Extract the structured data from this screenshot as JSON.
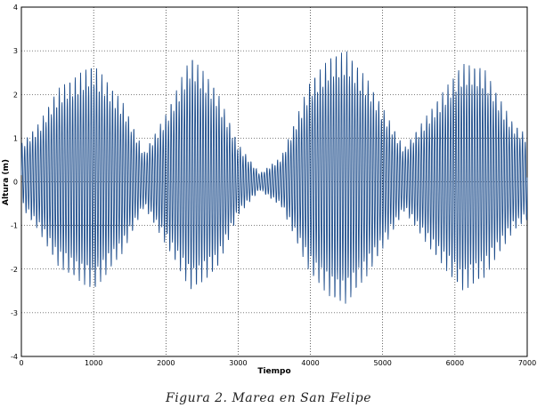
{
  "caption": "Figura 2. Marea en San Felipe",
  "chart_data": {
    "type": "line",
    "title": "",
    "xlabel": "Tiempo",
    "ylabel": "Altura (m)",
    "xlim": [
      0,
      7000
    ],
    "ylim": [
      -4,
      4
    ],
    "xticks": [
      0,
      1000,
      2000,
      3000,
      4000,
      5000,
      6000,
      7000
    ],
    "yticks": [
      -4,
      -3,
      -2,
      -1,
      0,
      1,
      2,
      3,
      4
    ],
    "xtick_labels": [
      "0",
      "1000",
      "2000",
      "3000",
      "4000",
      "5000",
      "6000",
      "7000"
    ],
    "ytick_labels": [
      "-4",
      "-3",
      "-2",
      "-1",
      "0",
      "1",
      "2",
      "3",
      "4"
    ],
    "grid": true,
    "line_color": "#1f4e8c",
    "series": [
      {
        "envelope": {
          "x": [
            0,
            250,
            500,
            1000,
            1400,
            1700,
            2000,
            2350,
            2700,
            3000,
            3300,
            3600,
            4000,
            4300,
            4500,
            4800,
            5300,
            5700,
            6100,
            6400,
            6800,
            7000
          ],
          "upper": [
            0.9,
            1.4,
            2.2,
            2.8,
            1.9,
            0.7,
            1.6,
            3.0,
            2.2,
            0.9,
            0.2,
            0.6,
            2.4,
            3.0,
            3.1,
            2.4,
            0.8,
            1.8,
            2.8,
            2.7,
            1.4,
            1.1
          ],
          "lower": [
            -0.6,
            -1.2,
            -2.0,
            -2.6,
            -1.7,
            -0.6,
            -1.5,
            -2.6,
            -2.1,
            -0.8,
            -0.2,
            -0.6,
            -2.2,
            -2.8,
            -2.9,
            -2.2,
            -0.7,
            -1.7,
            -2.6,
            -2.3,
            -1.2,
            -0.9
          ]
        },
        "cycles": 190
      }
    ]
  }
}
